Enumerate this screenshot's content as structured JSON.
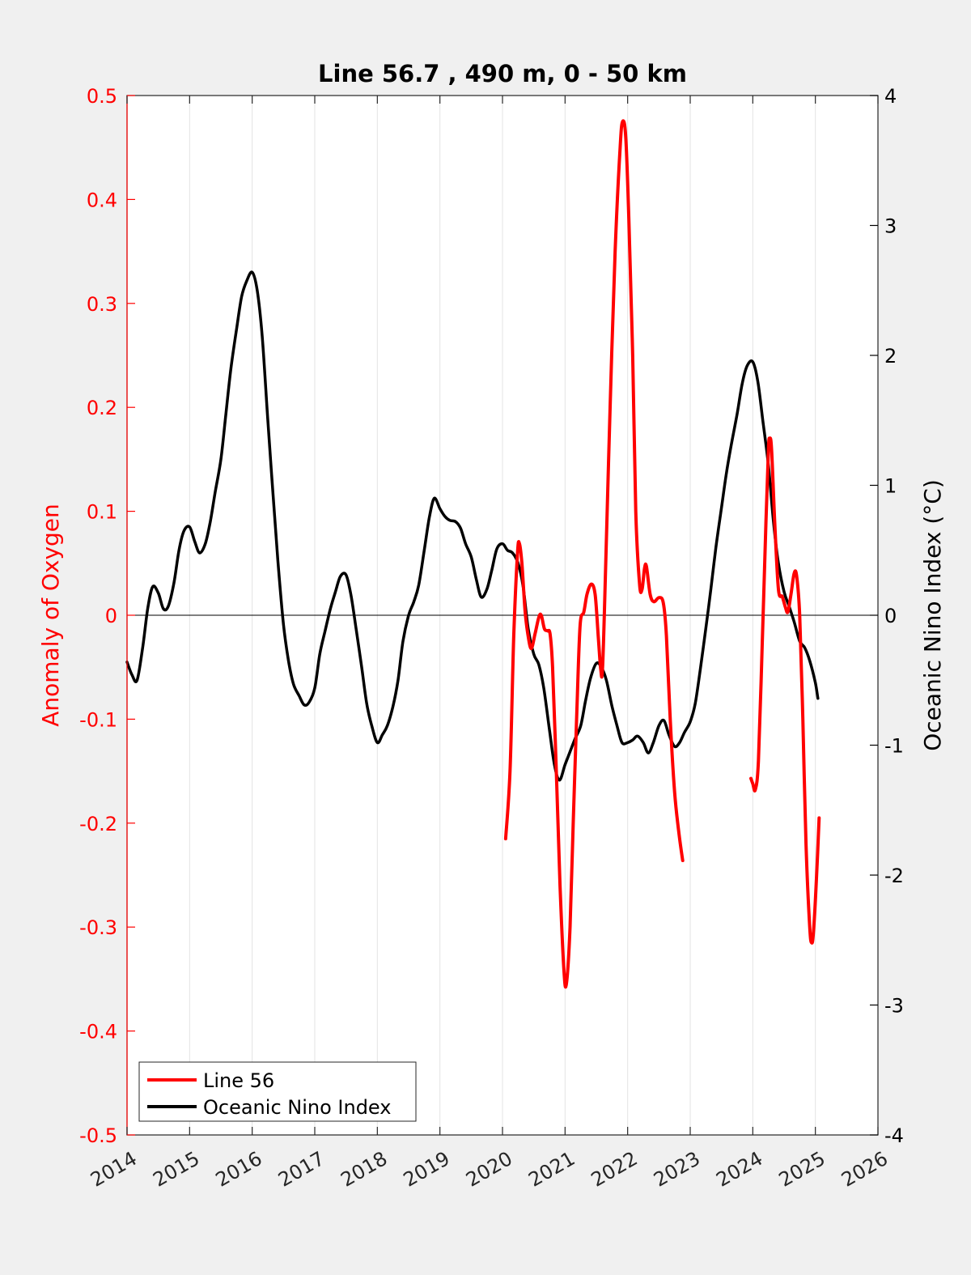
{
  "chart_data": {
    "type": "line",
    "title": "Line 56.7 , 490 m, 0 - 50 km",
    "xlabel": "",
    "ylabel_left": "Anomaly of Oxygen",
    "ylabel_right": "Oceanic Nino Index (°C)",
    "xlim": [
      2014,
      2026
    ],
    "ylim_left": [
      -0.5,
      0.5
    ],
    "ylim_right": [
      -4,
      4
    ],
    "x_ticks": [
      "2014",
      "2015",
      "2016",
      "2017",
      "2018",
      "2019",
      "2020",
      "2021",
      "2022",
      "2023",
      "2024",
      "2025",
      "2026"
    ],
    "y_ticks_left": [
      "0.5",
      "0.4",
      "0.3",
      "0.2",
      "0.1",
      "0",
      "-0.1",
      "-0.2",
      "-0.3",
      "-0.4",
      "-0.5"
    ],
    "y_ticks_right": [
      "4",
      "3",
      "2",
      "1",
      "0",
      "-1",
      "-2",
      "-3",
      "-4"
    ],
    "grid": "vertical",
    "zero_line": true,
    "legend_position": "bottom-left",
    "colors": {
      "line56": "#ff0000",
      "oni": "#000000",
      "left_axis": "#ff0000",
      "right_axis": "#000000"
    },
    "series": [
      {
        "name": "Line 56",
        "axis": "left",
        "color": "#ff0000",
        "segments": [
          [
            [
              2020.05,
              -0.215
            ],
            [
              2020.12,
              -0.15
            ],
            [
              2020.18,
              -0.02
            ],
            [
              2020.24,
              0.06
            ],
            [
              2020.27,
              0.069
            ],
            [
              2020.31,
              0.05
            ],
            [
              2020.36,
              0.005
            ],
            [
              2020.41,
              -0.02
            ],
            [
              2020.46,
              -0.032
            ],
            [
              2020.52,
              -0.018
            ],
            [
              2020.58,
              -0.002
            ],
            [
              2020.62,
              0.0
            ],
            [
              2020.67,
              -0.013
            ],
            [
              2020.72,
              -0.015
            ],
            [
              2020.76,
              -0.018
            ],
            [
              2020.8,
              -0.05
            ],
            [
              2020.86,
              -0.15
            ],
            [
              2020.92,
              -0.26
            ],
            [
              2020.98,
              -0.34
            ],
            [
              2021.02,
              -0.355
            ],
            [
              2021.08,
              -0.3
            ],
            [
              2021.13,
              -0.2
            ],
            [
              2021.19,
              -0.09
            ],
            [
              2021.24,
              -0.01
            ],
            [
              2021.3,
              0.003
            ],
            [
              2021.35,
              0.02
            ],
            [
              2021.42,
              0.03
            ],
            [
              2021.48,
              0.02
            ],
            [
              2021.53,
              -0.02
            ],
            [
              2021.57,
              -0.052
            ],
            [
              2021.6,
              -0.05
            ],
            [
              2021.65,
              0.05
            ],
            [
              2021.72,
              0.2
            ],
            [
              2021.8,
              0.35
            ],
            [
              2021.88,
              0.45
            ],
            [
              2021.92,
              0.475
            ],
            [
              2021.97,
              0.46
            ],
            [
              2022.02,
              0.38
            ],
            [
              2022.08,
              0.25
            ],
            [
              2022.13,
              0.1
            ],
            [
              2022.19,
              0.03
            ],
            [
              2022.23,
              0.025
            ],
            [
              2022.27,
              0.045
            ],
            [
              2022.3,
              0.047
            ],
            [
              2022.36,
              0.02
            ],
            [
              2022.42,
              0.013
            ],
            [
              2022.5,
              0.017
            ],
            [
              2022.57,
              0.012
            ],
            [
              2022.62,
              -0.02
            ],
            [
              2022.68,
              -0.1
            ],
            [
              2022.75,
              -0.17
            ],
            [
              2022.82,
              -0.21
            ],
            [
              2022.88,
              -0.236
            ]
          ],
          [
            [
              2023.97,
              -0.157
            ],
            [
              2024.0,
              -0.162
            ],
            [
              2024.04,
              -0.168
            ],
            [
              2024.09,
              -0.14
            ],
            [
              2024.15,
              -0.03
            ],
            [
              2024.21,
              0.09
            ],
            [
              2024.25,
              0.16
            ],
            [
              2024.27,
              0.17
            ],
            [
              2024.3,
              0.16
            ],
            [
              2024.35,
              0.09
            ],
            [
              2024.41,
              0.025
            ],
            [
              2024.47,
              0.018
            ],
            [
              2024.52,
              0.008
            ],
            [
              2024.56,
              0.003
            ],
            [
              2024.61,
              0.02
            ],
            [
              2024.66,
              0.04
            ],
            [
              2024.7,
              0.038
            ],
            [
              2024.75,
              0.0
            ],
            [
              2024.8,
              -0.1
            ],
            [
              2024.85,
              -0.22
            ],
            [
              2024.91,
              -0.3
            ],
            [
              2024.94,
              -0.315
            ],
            [
              2024.97,
              -0.305
            ],
            [
              2025.02,
              -0.25
            ],
            [
              2025.06,
              -0.195
            ]
          ]
        ]
      },
      {
        "name": "Oceanic Nino Index",
        "axis": "right",
        "color": "#000000",
        "points": [
          [
            2014.0,
            -0.36
          ],
          [
            2014.08,
            -0.46
          ],
          [
            2014.16,
            -0.5
          ],
          [
            2014.25,
            -0.25
          ],
          [
            2014.33,
            0.05
          ],
          [
            2014.41,
            0.22
          ],
          [
            2014.5,
            0.17
          ],
          [
            2014.58,
            0.05
          ],
          [
            2014.66,
            0.07
          ],
          [
            2014.75,
            0.25
          ],
          [
            2014.83,
            0.5
          ],
          [
            2014.91,
            0.65
          ],
          [
            2015.0,
            0.68
          ],
          [
            2015.08,
            0.57
          ],
          [
            2015.16,
            0.48
          ],
          [
            2015.25,
            0.55
          ],
          [
            2015.33,
            0.72
          ],
          [
            2015.41,
            0.95
          ],
          [
            2015.5,
            1.2
          ],
          [
            2015.58,
            1.55
          ],
          [
            2015.66,
            1.9
          ],
          [
            2015.75,
            2.2
          ],
          [
            2015.83,
            2.45
          ],
          [
            2015.91,
            2.57
          ],
          [
            2016.0,
            2.64
          ],
          [
            2016.08,
            2.5
          ],
          [
            2016.16,
            2.15
          ],
          [
            2016.25,
            1.5
          ],
          [
            2016.33,
            0.95
          ],
          [
            2016.41,
            0.42
          ],
          [
            2016.5,
            -0.07
          ],
          [
            2016.58,
            -0.35
          ],
          [
            2016.66,
            -0.53
          ],
          [
            2016.75,
            -0.62
          ],
          [
            2016.83,
            -0.69
          ],
          [
            2016.91,
            -0.67
          ],
          [
            2017.0,
            -0.56
          ],
          [
            2017.08,
            -0.3
          ],
          [
            2017.16,
            -0.13
          ],
          [
            2017.25,
            0.05
          ],
          [
            2017.33,
            0.18
          ],
          [
            2017.41,
            0.3
          ],
          [
            2017.5,
            0.31
          ],
          [
            2017.58,
            0.15
          ],
          [
            2017.66,
            -0.1
          ],
          [
            2017.75,
            -0.4
          ],
          [
            2017.83,
            -0.68
          ],
          [
            2017.91,
            -0.85
          ],
          [
            2018.0,
            -0.98
          ],
          [
            2018.08,
            -0.92
          ],
          [
            2018.16,
            -0.85
          ],
          [
            2018.25,
            -0.7
          ],
          [
            2018.33,
            -0.5
          ],
          [
            2018.41,
            -0.2
          ],
          [
            2018.5,
            0.0
          ],
          [
            2018.58,
            0.1
          ],
          [
            2018.66,
            0.23
          ],
          [
            2018.75,
            0.5
          ],
          [
            2018.83,
            0.75
          ],
          [
            2018.91,
            0.9
          ],
          [
            2019.0,
            0.82
          ],
          [
            2019.08,
            0.76
          ],
          [
            2019.16,
            0.73
          ],
          [
            2019.25,
            0.72
          ],
          [
            2019.33,
            0.67
          ],
          [
            2019.41,
            0.55
          ],
          [
            2019.5,
            0.45
          ],
          [
            2019.58,
            0.28
          ],
          [
            2019.66,
            0.14
          ],
          [
            2019.75,
            0.2
          ],
          [
            2019.83,
            0.35
          ],
          [
            2019.91,
            0.51
          ],
          [
            2020.0,
            0.55
          ],
          [
            2020.08,
            0.5
          ],
          [
            2020.16,
            0.48
          ],
          [
            2020.25,
            0.4
          ],
          [
            2020.33,
            0.22
          ],
          [
            2020.41,
            -0.1
          ],
          [
            2020.5,
            -0.3
          ],
          [
            2020.58,
            -0.38
          ],
          [
            2020.66,
            -0.56
          ],
          [
            2020.75,
            -0.88
          ],
          [
            2020.83,
            -1.15
          ],
          [
            2020.91,
            -1.27
          ],
          [
            2021.0,
            -1.15
          ],
          [
            2021.08,
            -1.05
          ],
          [
            2021.16,
            -0.95
          ],
          [
            2021.25,
            -0.85
          ],
          [
            2021.33,
            -0.65
          ],
          [
            2021.41,
            -0.48
          ],
          [
            2021.5,
            -0.37
          ],
          [
            2021.58,
            -0.4
          ],
          [
            2021.66,
            -0.5
          ],
          [
            2021.75,
            -0.7
          ],
          [
            2021.83,
            -0.85
          ],
          [
            2021.91,
            -0.98
          ],
          [
            2022.0,
            -0.98
          ],
          [
            2022.08,
            -0.96
          ],
          [
            2022.16,
            -0.93
          ],
          [
            2022.25,
            -0.98
          ],
          [
            2022.33,
            -1.06
          ],
          [
            2022.41,
            -0.98
          ],
          [
            2022.5,
            -0.85
          ],
          [
            2022.58,
            -0.81
          ],
          [
            2022.66,
            -0.92
          ],
          [
            2022.75,
            -1.01
          ],
          [
            2022.83,
            -0.98
          ],
          [
            2022.91,
            -0.9
          ],
          [
            2023.0,
            -0.82
          ],
          [
            2023.08,
            -0.68
          ],
          [
            2023.16,
            -0.42
          ],
          [
            2023.25,
            -0.1
          ],
          [
            2023.33,
            0.2
          ],
          [
            2023.41,
            0.52
          ],
          [
            2023.5,
            0.83
          ],
          [
            2023.58,
            1.1
          ],
          [
            2023.66,
            1.32
          ],
          [
            2023.75,
            1.55
          ],
          [
            2023.83,
            1.78
          ],
          [
            2023.91,
            1.92
          ],
          [
            2024.0,
            1.95
          ],
          [
            2024.08,
            1.8
          ],
          [
            2024.16,
            1.5
          ],
          [
            2024.25,
            1.15
          ],
          [
            2024.33,
            0.72
          ],
          [
            2024.41,
            0.4
          ],
          [
            2024.5,
            0.18
          ],
          [
            2024.58,
            0.07
          ],
          [
            2024.66,
            -0.05
          ],
          [
            2024.75,
            -0.2
          ],
          [
            2024.83,
            -0.25
          ],
          [
            2024.91,
            -0.35
          ],
          [
            2025.0,
            -0.52
          ],
          [
            2025.04,
            -0.64
          ]
        ]
      }
    ]
  }
}
